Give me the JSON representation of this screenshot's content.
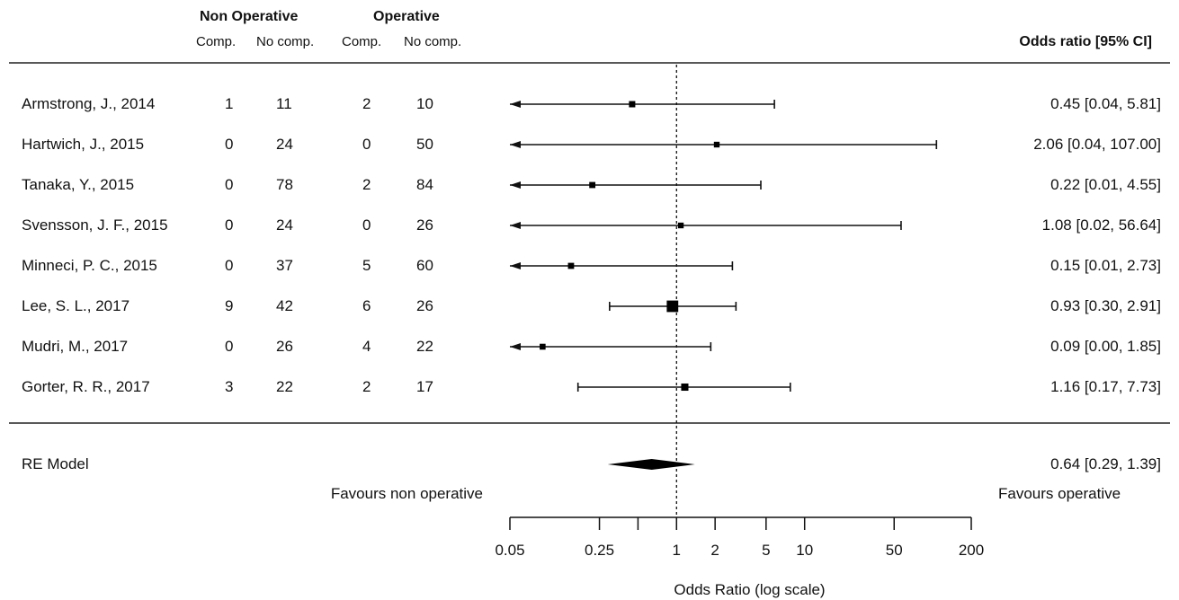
{
  "header": {
    "group1": "Non Operative",
    "group2": "Operative",
    "g1_comp": "Comp.",
    "g1_nocomp": "No comp.",
    "g2_comp": "Comp.",
    "g2_nocomp": "No comp.",
    "or_label": "Odds ratio [95% CI]"
  },
  "chart_data": {
    "type": "forest",
    "xscale": "log",
    "xlim": [
      0.05,
      200
    ],
    "xticks": [
      0.05,
      0.25,
      0.5,
      1,
      2,
      5,
      10,
      50,
      200
    ],
    "xtick_labels": [
      "0.05",
      "0.25",
      "",
      "1",
      "2",
      "5",
      "10",
      "50",
      "200"
    ],
    "reference_line": 1,
    "xlabel": "Odds Ratio (log scale)",
    "favours_left": "Favours non operative",
    "favours_right": "Favours operative",
    "studies": [
      {
        "name": "Armstrong, J., 2014",
        "nonop_comp": "1",
        "nonop_nocomp": "11",
        "op_comp": "2",
        "op_nocomp": "10",
        "or": 0.45,
        "lo": 0.04,
        "hi": 5.81,
        "label": "0.45 [0.04,  5.81]",
        "weight": 1
      },
      {
        "name": "Hartwich, J., 2015",
        "nonop_comp": "0",
        "nonop_nocomp": "24",
        "op_comp": "0",
        "op_nocomp": "50",
        "or": 2.06,
        "lo": 0.04,
        "hi": 107.0,
        "label": "2.06 [0.04, 107.00]",
        "weight": 0.7
      },
      {
        "name": "Tanaka, Y., 2015",
        "nonop_comp": "0",
        "nonop_nocomp": "78",
        "op_comp": "2",
        "op_nocomp": "84",
        "or": 0.22,
        "lo": 0.01,
        "hi": 4.55,
        "label": "0.22 [0.01,  4.55]",
        "weight": 0.9
      },
      {
        "name": "Svensson, J. F., 2015",
        "nonop_comp": "0",
        "nonop_nocomp": "24",
        "op_comp": "0",
        "op_nocomp": "26",
        "or": 1.08,
        "lo": 0.02,
        "hi": 56.64,
        "label": "1.08 [0.02, 56.64]",
        "weight": 0.7
      },
      {
        "name": "Minneci, P. C., 2015",
        "nonop_comp": "0",
        "nonop_nocomp": "37",
        "op_comp": "5",
        "op_nocomp": "60",
        "or": 0.15,
        "lo": 0.01,
        "hi": 2.73,
        "label": "0.15 [0.01,  2.73]",
        "weight": 0.9
      },
      {
        "name": "Lee, S. L., 2017",
        "nonop_comp": "9",
        "nonop_nocomp": "42",
        "op_comp": "6",
        "op_nocomp": "26",
        "or": 0.93,
        "lo": 0.3,
        "hi": 2.91,
        "label": "0.93 [0.30,  2.91]",
        "weight": 6
      },
      {
        "name": "Mudri, M., 2017",
        "nonop_comp": "0",
        "nonop_nocomp": "26",
        "op_comp": "4",
        "op_nocomp": "22",
        "or": 0.09,
        "lo": 0.0,
        "hi": 1.85,
        "label": "0.09 [0.00,  1.85]",
        "weight": 0.8
      },
      {
        "name": "Gorter, R. R., 2017",
        "nonop_comp": "3",
        "nonop_nocomp": "22",
        "op_comp": "2",
        "op_nocomp": "17",
        "or": 1.16,
        "lo": 0.17,
        "hi": 7.73,
        "label": "1.16 [0.17,  7.73]",
        "weight": 1.6
      }
    ],
    "summary": {
      "name": "RE Model",
      "or": 0.64,
      "lo": 0.29,
      "hi": 1.39,
      "label": "0.64 [0.29,  1.39]"
    }
  }
}
